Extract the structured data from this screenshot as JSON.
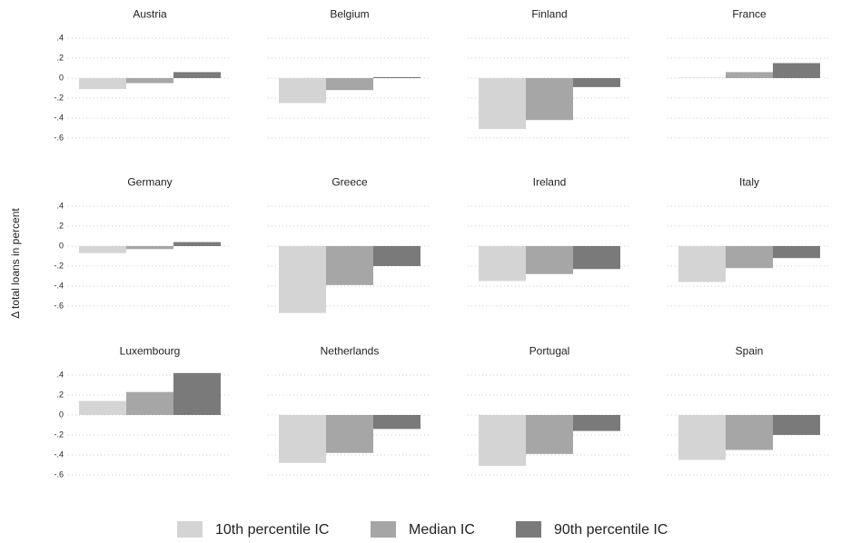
{
  "chart_data": {
    "type": "bar",
    "facets": true,
    "y_label": "Δ total loans in percent",
    "categories": [
      "Austria",
      "Belgium",
      "Finland",
      "France",
      "Germany",
      "Greece",
      "Ireland",
      "Italy",
      "Luxembourg",
      "Netherlands",
      "Portugal",
      "Spain"
    ],
    "series": [
      {
        "name": "10th percentile IC",
        "color": "#d4d4d4",
        "values": [
          -0.11,
          -0.25,
          -0.51,
          0.005,
          -0.07,
          -0.67,
          -0.35,
          -0.36,
          0.14,
          -0.48,
          -0.51,
          -0.45
        ]
      },
      {
        "name": "Median IC",
        "color": "#a6a6a6",
        "values": [
          -0.05,
          -0.12,
          -0.42,
          0.06,
          -0.03,
          -0.39,
          -0.28,
          -0.22,
          0.23,
          -0.38,
          -0.39,
          -0.35
        ]
      },
      {
        "name": "90th percentile IC",
        "color": "#7a7a7a",
        "values": [
          0.06,
          0.01,
          -0.09,
          0.15,
          0.04,
          -0.2,
          -0.23,
          -0.12,
          0.42,
          -0.14,
          -0.16,
          -0.2
        ]
      }
    ],
    "ylim": [
      -0.7,
      0.45
    ],
    "yticks": [
      {
        "value": 0.4,
        "label": ".4"
      },
      {
        "value": 0.2,
        "label": ".2"
      },
      0,
      {
        "value": -0.2,
        "label": "-.2"
      },
      {
        "value": -0.4,
        "label": "-.4"
      },
      {
        "value": -0.6,
        "label": "-.6"
      }
    ],
    "grid": true
  }
}
